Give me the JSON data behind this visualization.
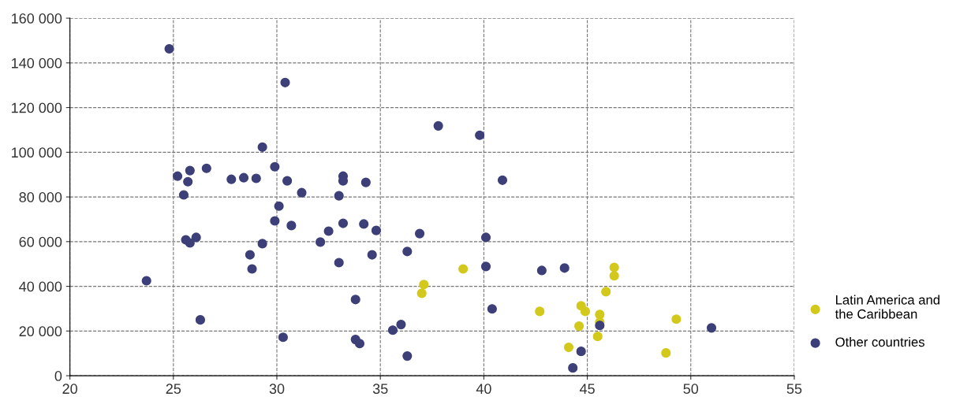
{
  "chart_data": {
    "type": "scatter",
    "xlim": [
      20,
      55
    ],
    "ylim": [
      0,
      160000
    ],
    "xticks": [
      20,
      25,
      30,
      35,
      40,
      45,
      50,
      55
    ],
    "yticks": [
      0,
      {
        "value": 20000,
        "label": "20 000"
      },
      {
        "value": 40000,
        "label": "40 000"
      },
      {
        "value": 60000,
        "label": "60 000"
      },
      {
        "value": 80000,
        "label": "80 000"
      },
      {
        "value": 100000,
        "label": "100 000"
      },
      {
        "value": 120000,
        "label": "120 000"
      },
      {
        "value": 140000,
        "label": "140 000"
      },
      {
        "value": 160000,
        "label": "160 000"
      }
    ],
    "grid": true,
    "legend": "right",
    "marker": "circle",
    "series": [
      {
        "name": "Latin America and\nthe Caribbean",
        "color": "#d2c91c",
        "x": [
          37.1,
          37.0,
          39.0,
          42.7,
          46.3,
          46.3,
          45.9,
          44.7,
          44.9,
          45.6,
          44.6,
          45.6,
          44.1,
          45.5,
          49.3,
          48.8
        ],
        "values": [
          40800,
          36900,
          47800,
          28800,
          48500,
          44700,
          37600,
          31300,
          28800,
          27400,
          22200,
          24000,
          12700,
          17600,
          25300,
          10200
        ]
      },
      {
        "name": "Other countries",
        "color": "#3d3f78",
        "x": [
          24.8,
          30.4,
          29.3,
          37.8,
          39.8,
          40.9,
          25.2,
          25.8,
          26.6,
          25.7,
          25.5,
          27.8,
          28.4,
          29.0,
          29.9,
          30.5,
          31.2,
          33.2,
          33.2,
          34.3,
          33.0,
          29.9,
          30.1,
          30.7,
          32.5,
          33.2,
          34.2,
          34.8,
          36.9,
          40.1,
          25.6,
          26.1,
          25.8,
          29.3,
          32.1,
          28.7,
          34.6,
          36.3,
          28.8,
          33.0,
          40.1,
          42.8,
          43.9,
          23.7,
          33.8,
          40.4,
          26.3,
          30.3,
          33.8,
          34.0,
          35.6,
          36.0,
          36.3,
          44.7,
          44.3,
          45.6,
          51.0
        ],
        "values": [
          146300,
          131200,
          102300,
          111800,
          107600,
          87500,
          89300,
          91800,
          92800,
          86800,
          80900,
          87900,
          88600,
          88300,
          93500,
          87200,
          81900,
          89300,
          87200,
          86500,
          80500,
          69300,
          75900,
          67200,
          64700,
          68200,
          67900,
          65000,
          63600,
          61900,
          60800,
          61900,
          59400,
          59100,
          59800,
          54100,
          54100,
          55600,
          47800,
          50600,
          48900,
          47100,
          48200,
          42500,
          34100,
          29900,
          25000,
          17200,
          16200,
          14400,
          20400,
          22900,
          8800,
          10900,
          3500,
          22500,
          21400
        ]
      }
    ]
  }
}
